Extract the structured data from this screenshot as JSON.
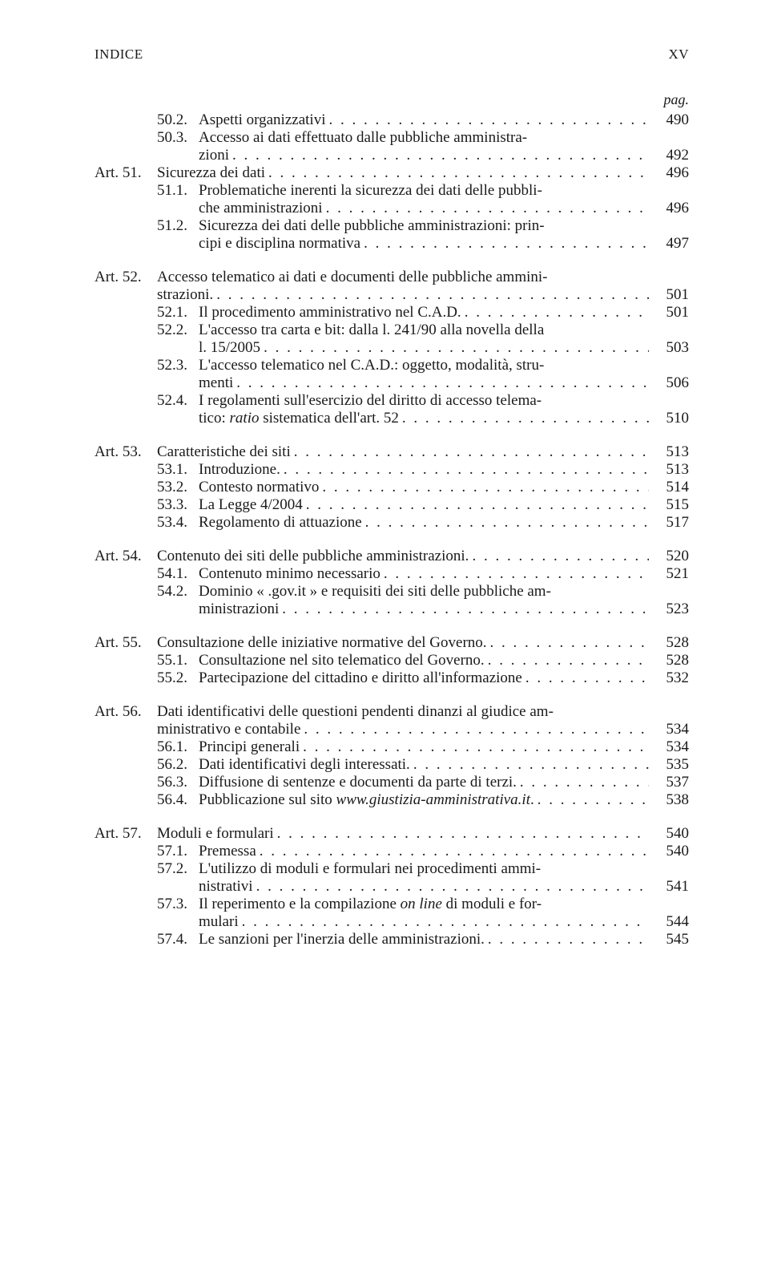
{
  "header": {
    "left": "INDICE",
    "right": "XV"
  },
  "pag_label": "pag.",
  "leader_dots": ". . . . . . . . . . . . . . . . . . . . . . . . . . . . . . . . . . . . . . . . . . . . . . . . . . . . . . . . . . . . . . . .",
  "blocks": [
    {
      "rows": [
        {
          "sub": "50.2.",
          "lines": [
            "Aspetti organizzativi"
          ],
          "page": "490"
        },
        {
          "sub": "50.3.",
          "lines": [
            "Accesso ai dati effettuato dalle pubbliche amministra-",
            "zioni"
          ],
          "page": "492"
        },
        {
          "art": "Art. 51.",
          "lines": [
            "Sicurezza dei dati"
          ],
          "page": "496"
        },
        {
          "sub": "51.1.",
          "lines": [
            "Problematiche inerenti la sicurezza dei dati delle pubbli-",
            "che amministrazioni"
          ],
          "page": "496"
        },
        {
          "sub": "51.2.",
          "lines": [
            "Sicurezza dei dati delle pubbliche amministrazioni: prin-",
            "cipi e disciplina normativa"
          ],
          "page": "497"
        }
      ]
    },
    {
      "rows": [
        {
          "art": "Art. 52.",
          "lines": [
            "Accesso telematico ai dati e documenti delle pubbliche ammini-",
            "strazioni."
          ],
          "page": "501"
        },
        {
          "sub": "52.1.",
          "lines": [
            "Il procedimento amministrativo nel C.A.D."
          ],
          "page": "501"
        },
        {
          "sub": "52.2.",
          "lines": [
            "L'accesso tra carta e bit: dalla l. 241/90 alla novella della",
            "l. 15/2005"
          ],
          "page": "503"
        },
        {
          "sub": "52.3.",
          "lines": [
            "L'accesso telematico nel C.A.D.: oggetto, modalità, stru-",
            "menti"
          ],
          "page": "506"
        },
        {
          "sub": "52.4.",
          "lines_html": [
            "I regolamenti sull'esercizio del diritto di accesso telema-",
            "tico: <span class=\"ital\">ratio</span> sistematica dell'art. 52"
          ],
          "page": "510"
        }
      ]
    },
    {
      "rows": [
        {
          "art": "Art. 53.",
          "lines": [
            "Caratteristiche dei siti"
          ],
          "page": "513"
        },
        {
          "sub": "53.1.",
          "lines": [
            "Introduzione."
          ],
          "page": "513"
        },
        {
          "sub": "53.2.",
          "lines": [
            "Contesto normativo"
          ],
          "page": "514"
        },
        {
          "sub": "53.3.",
          "lines": [
            "La Legge 4/2004"
          ],
          "page": "515"
        },
        {
          "sub": "53.4.",
          "lines": [
            "Regolamento di attuazione"
          ],
          "page": "517"
        }
      ]
    },
    {
      "rows": [
        {
          "art": "Art. 54.",
          "lines": [
            "Contenuto dei siti delle pubbliche amministrazioni."
          ],
          "page": "520"
        },
        {
          "sub": "54.1.",
          "lines": [
            "Contenuto minimo necessario"
          ],
          "page": "521"
        },
        {
          "sub": "54.2.",
          "lines": [
            "Dominio « .gov.it » e requisiti dei siti delle pubbliche am-",
            "ministrazioni"
          ],
          "page": "523"
        }
      ]
    },
    {
      "rows": [
        {
          "art": "Art. 55.",
          "lines": [
            "Consultazione delle iniziative normative del Governo."
          ],
          "page": "528"
        },
        {
          "sub": "55.1.",
          "lines": [
            "Consultazione nel sito telematico del Governo."
          ],
          "page": "528"
        },
        {
          "sub": "55.2.",
          "lines": [
            "Partecipazione del cittadino e diritto all'informazione"
          ],
          "page": "532"
        }
      ]
    },
    {
      "rows": [
        {
          "art": "Art. 56.",
          "lines": [
            "Dati identificativi delle questioni pendenti dinanzi al giudice am-",
            "ministrativo e contabile"
          ],
          "page": "534"
        },
        {
          "sub": "56.1.",
          "lines": [
            "Principi generali"
          ],
          "page": "534"
        },
        {
          "sub": "56.2.",
          "lines": [
            "Dati identificativi degli interessati."
          ],
          "page": "535"
        },
        {
          "sub": "56.3.",
          "lines": [
            "Diffusione di sentenze e documenti da parte di terzi."
          ],
          "page": "537"
        },
        {
          "sub": "56.4.",
          "lines_html": [
            "Pubblicazione sul sito <span class=\"ital\">www.giustizia-amministrativa.it</span>."
          ],
          "page": "538"
        }
      ]
    },
    {
      "rows": [
        {
          "art": "Art. 57.",
          "lines": [
            "Moduli e formulari"
          ],
          "page": "540"
        },
        {
          "sub": "57.1.",
          "lines": [
            "Premessa"
          ],
          "page": "540"
        },
        {
          "sub": "57.2.",
          "lines": [
            "L'utilizzo di moduli e formulari nei procedimenti ammi-",
            "nistrativi"
          ],
          "page": "541"
        },
        {
          "sub": "57.3.",
          "lines_html": [
            "Il reperimento e la compilazione <span class=\"ital\">on line</span> di moduli e for-",
            "mulari"
          ],
          "page": "544"
        },
        {
          "sub": "57.4.",
          "lines": [
            "Le sanzioni per l'inerzia delle amministrazioni."
          ],
          "page": "545"
        }
      ]
    }
  ]
}
